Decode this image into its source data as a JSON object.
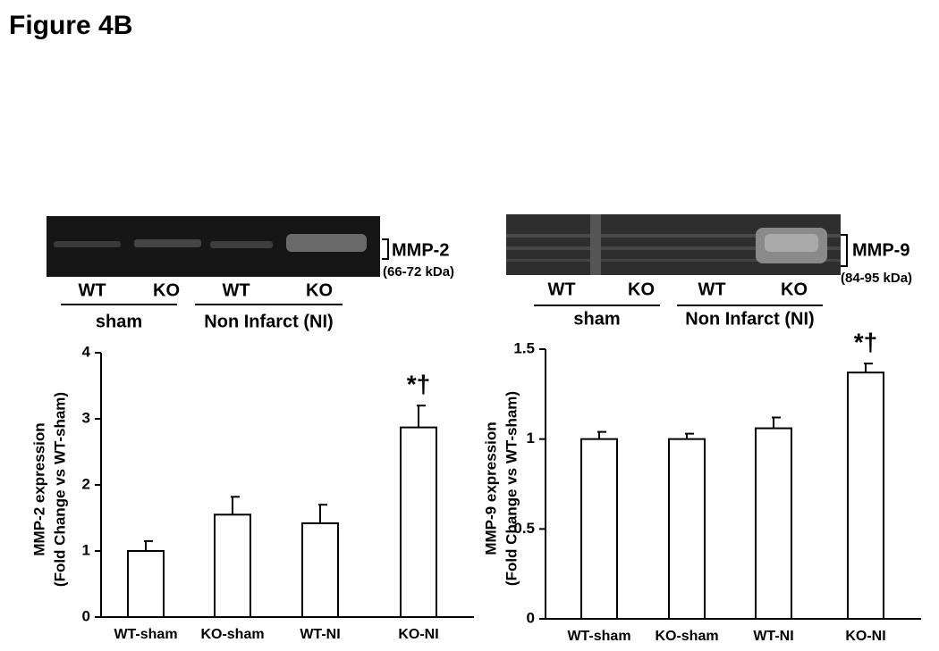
{
  "figure_title": "Figure 4B",
  "chart_data": [
    {
      "type": "bar",
      "ylabel": [
        "MMP-2 expression",
        "(Fold Change vs WT-sham)"
      ],
      "categories": [
        "WT-sham",
        "KO-sham",
        "WT-NI",
        "KO-NI"
      ],
      "values": [
        1.0,
        1.55,
        1.42,
        2.87
      ],
      "errors": [
        0.15,
        0.27,
        0.28,
        0.33
      ],
      "annotation_labels": [
        null,
        null,
        null,
        "*†"
      ],
      "color": "#ffffff",
      "ylim": [
        0,
        4
      ],
      "yticks": [
        0,
        1,
        2,
        3,
        4
      ],
      "blot": {
        "lanes": [
          "WT",
          "KO",
          "WT",
          "KO"
        ],
        "groups": [
          "sham",
          "Non Infarct (NI)"
        ],
        "band": "MMP-2",
        "size": "(66-72 kDa)"
      }
    },
    {
      "type": "bar",
      "ylabel": [
        "MMP-9 expression",
        "(Fold Change vs WT-sham)"
      ],
      "categories": [
        "WT-sham",
        "KO-sham",
        "WT-NI",
        "KO-NI"
      ],
      "values": [
        1.0,
        1.0,
        1.06,
        1.37
      ],
      "errors": [
        0.04,
        0.03,
        0.06,
        0.05
      ],
      "annotation_labels": [
        null,
        null,
        null,
        "*†"
      ],
      "color": "#ffffff",
      "ylim": [
        0,
        1.5
      ],
      "yticks": [
        0,
        0.5,
        1,
        1.5
      ],
      "blot": {
        "lanes": [
          "WT",
          "KO",
          "WT",
          "KO"
        ],
        "groups": [
          "sham",
          "Non Infarct (NI)"
        ],
        "band": "MMP-9",
        "size": "(84-95 kDa)"
      }
    }
  ]
}
